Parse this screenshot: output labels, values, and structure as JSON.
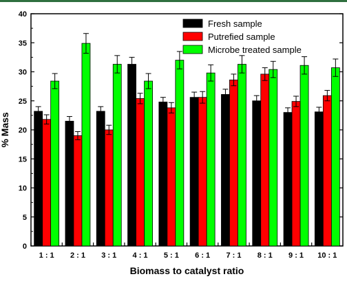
{
  "colors": {
    "accent_rule": "#2f6f3f"
  },
  "chart_data": {
    "type": "bar",
    "title": "",
    "xlabel": "Biomass to catalyst ratio",
    "ylabel": "% Mass",
    "categories": [
      "1 : 1",
      "2 : 1",
      "3 : 1",
      "4 : 1",
      "5 : 1",
      "6 : 1",
      "7 : 1",
      "8 : 1",
      "9 : 1",
      "10 : 1"
    ],
    "ylim": [
      0,
      40
    ],
    "yticks": [
      0,
      5,
      10,
      15,
      20,
      25,
      30,
      35,
      40
    ],
    "grid": false,
    "legend_position": "top-right",
    "series": [
      {
        "name": "Fresh sample",
        "color": "#000000",
        "values": [
          23.2,
          21.5,
          23.2,
          31.3,
          24.8,
          25.6,
          26.1,
          25.0,
          23.0,
          23.1
        ],
        "errors": [
          0.8,
          0.8,
          0.8,
          1.2,
          0.8,
          0.9,
          0.9,
          0.9,
          0.8,
          0.8
        ]
      },
      {
        "name": "Putrefied sample",
        "color": "#ff0000",
        "values": [
          21.8,
          19.0,
          20.0,
          25.4,
          23.8,
          25.6,
          28.6,
          29.6,
          24.9,
          25.9
        ],
        "errors": [
          0.8,
          0.7,
          0.8,
          0.9,
          0.9,
          1.0,
          1.0,
          1.1,
          0.9,
          0.9
        ]
      },
      {
        "name": "Microbe treated sample",
        "color": "#00ff00",
        "values": [
          28.4,
          34.9,
          31.3,
          28.4,
          32.0,
          29.8,
          31.3,
          30.4,
          31.1,
          30.7
        ],
        "errors": [
          1.3,
          1.7,
          1.5,
          1.3,
          1.5,
          1.4,
          1.5,
          1.4,
          1.5,
          1.5
        ]
      }
    ]
  }
}
